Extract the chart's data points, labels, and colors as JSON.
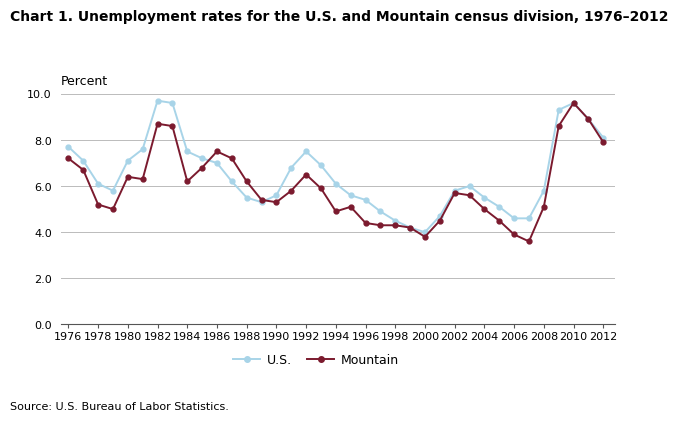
{
  "title": "Chart 1. Unemployment rates for the U.S. and Mountain census division, 1976–2012",
  "ylabel": "Percent",
  "source": "Source: U.S. Bureau of Labor Statistics.",
  "years": [
    1976,
    1977,
    1978,
    1979,
    1980,
    1981,
    1982,
    1983,
    1984,
    1985,
    1986,
    1987,
    1988,
    1989,
    1990,
    1991,
    1992,
    1993,
    1994,
    1995,
    1996,
    1997,
    1998,
    1999,
    2000,
    2001,
    2002,
    2003,
    2004,
    2005,
    2006,
    2007,
    2008,
    2009,
    2010,
    2011,
    2012
  ],
  "us_data": [
    7.7,
    7.1,
    6.1,
    5.8,
    7.1,
    7.6,
    9.7,
    9.6,
    7.5,
    7.2,
    7.0,
    6.2,
    5.5,
    5.3,
    5.6,
    6.8,
    7.5,
    6.9,
    6.1,
    5.6,
    5.4,
    4.9,
    4.5,
    4.2,
    4.0,
    4.7,
    5.8,
    6.0,
    5.5,
    5.1,
    4.6,
    4.6,
    5.8,
    9.3,
    9.6,
    8.9,
    8.1
  ],
  "mountain_data": [
    7.2,
    6.7,
    5.2,
    5.0,
    6.4,
    6.3,
    8.7,
    8.6,
    6.2,
    6.8,
    7.5,
    7.2,
    6.2,
    5.4,
    5.3,
    5.8,
    6.5,
    5.9,
    4.9,
    5.1,
    4.4,
    4.3,
    4.3,
    4.2,
    3.8,
    4.5,
    5.7,
    5.6,
    5.0,
    4.5,
    3.9,
    3.6,
    5.1,
    8.6,
    9.6,
    8.9,
    7.9
  ],
  "us_color": "#a8d4e8",
  "mountain_color": "#7b1a2e",
  "us_label": "U.S.",
  "mountain_label": "Mountain",
  "ylim": [
    0.0,
    10.0
  ],
  "yticks": [
    0.0,
    2.0,
    4.0,
    6.0,
    8.0,
    10.0
  ],
  "xtick_years": [
    1976,
    1978,
    1980,
    1982,
    1984,
    1986,
    1988,
    1990,
    1992,
    1994,
    1996,
    1998,
    2000,
    2002,
    2004,
    2006,
    2008,
    2010,
    2012
  ],
  "title_fontsize": 10,
  "label_fontsize": 9,
  "tick_fontsize": 8,
  "legend_fontsize": 9,
  "source_fontsize": 8
}
